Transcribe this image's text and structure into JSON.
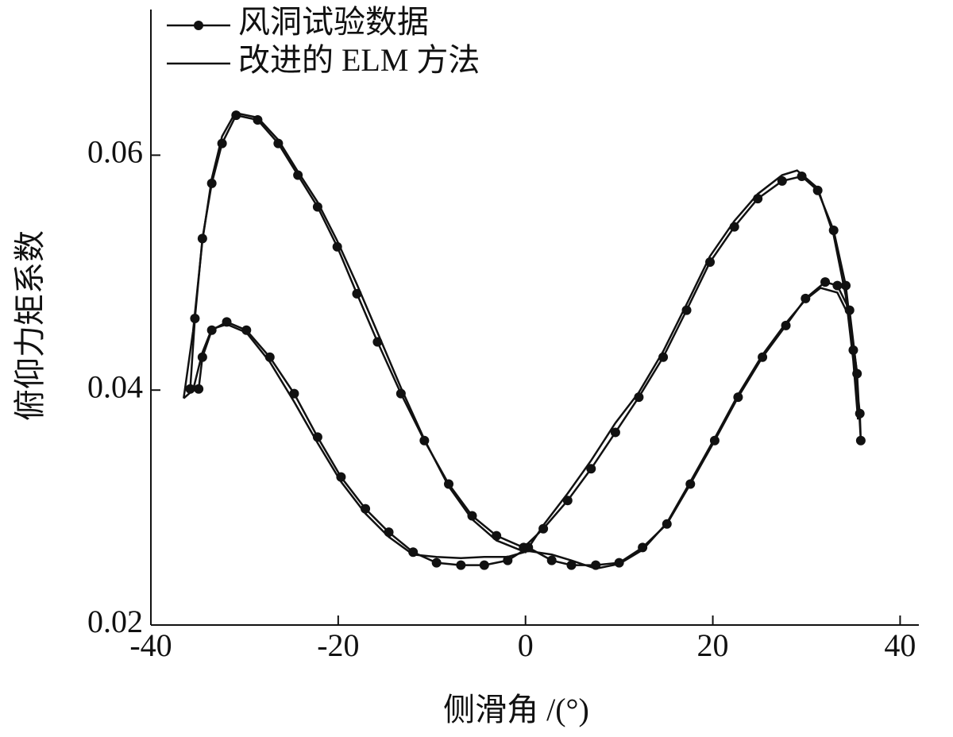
{
  "chart_data": {
    "type": "line",
    "x_label": "侧滑角 /(°)",
    "y_label": "俯仰力矩系数",
    "xlim": [
      -40,
      42
    ],
    "ylim": [
      0.02,
      0.0724
    ],
    "xticks": [
      -40,
      -20,
      0,
      20,
      40
    ],
    "yticks": [
      0.02,
      0.04,
      0.06
    ],
    "legend": "upper left",
    "series": [
      {
        "name": "风洞试验数据",
        "color": "#111111",
        "marker": true,
        "x": [
          -35.8,
          -35.3,
          -34.5,
          -33.5,
          -32.4,
          -30.9,
          -28.6,
          -26.4,
          -24.3,
          -22.2,
          -20.1,
          -18.0,
          -15.8,
          -13.3,
          -10.8,
          -8.2,
          -5.7,
          -3.1,
          -0.2,
          1.9,
          4.5,
          7.0,
          9.6,
          12.1,
          14.7,
          17.2,
          19.7,
          22.3,
          24.8,
          27.4,
          29.5,
          31.2,
          32.9,
          34.2,
          35.0,
          35.7,
          35.8,
          35.4,
          34.6,
          33.3,
          32.0,
          29.9,
          27.8,
          25.3,
          22.7,
          20.2,
          17.6,
          15.1,
          12.5,
          10.0,
          7.5,
          4.9,
          2.8,
          0.3,
          -1.9,
          -4.4,
          -6.9,
          -9.5,
          -12.0,
          -14.6,
          -17.1,
          -19.7,
          -22.2,
          -24.7,
          -27.3,
          -29.8,
          -31.9,
          -33.5,
          -34.5,
          -34.9
        ],
        "values": [
          0.0401,
          0.0461,
          0.0529,
          0.0576,
          0.061,
          0.0634,
          0.063,
          0.061,
          0.0583,
          0.0556,
          0.0522,
          0.0482,
          0.0441,
          0.0397,
          0.0357,
          0.032,
          0.0293,
          0.0276,
          0.0266,
          0.0282,
          0.0306,
          0.0333,
          0.0364,
          0.0394,
          0.0428,
          0.0468,
          0.0509,
          0.0539,
          0.0563,
          0.0578,
          0.0582,
          0.057,
          0.0536,
          0.0489,
          0.0434,
          0.038,
          0.0357,
          0.0414,
          0.0468,
          0.0489,
          0.0492,
          0.0478,
          0.0455,
          0.0428,
          0.0394,
          0.0357,
          0.032,
          0.0286,
          0.0266,
          0.0253,
          0.0251,
          0.0251,
          0.0255,
          0.0266,
          0.0255,
          0.0251,
          0.0251,
          0.0253,
          0.0262,
          0.0279,
          0.0299,
          0.0326,
          0.036,
          0.0397,
          0.0428,
          0.0451,
          0.0458,
          0.0451,
          0.0428,
          0.0401
        ]
      },
      {
        "name": "改进的 ELM 方法",
        "color": "#111111",
        "marker": false,
        "x": [
          -36.5,
          -35.5,
          -34.5,
          -33.5,
          -32.4,
          -31.0,
          -28.6,
          -26.4,
          -24.3,
          -22.2,
          -20.1,
          -18.0,
          -15.8,
          -13.3,
          -10.8,
          -8.2,
          -5.7,
          -3.1,
          0.0,
          2.0,
          4.5,
          7.0,
          9.6,
          12.1,
          14.7,
          17.2,
          19.7,
          22.3,
          24.8,
          27.4,
          29.0,
          31.2,
          32.9,
          34.2,
          35.0,
          35.5,
          35.4,
          34.6,
          33.3,
          31.5,
          29.9,
          27.8,
          25.3,
          22.7,
          20.2,
          17.6,
          15.1,
          12.5,
          10.0,
          7.5,
          4.9,
          2.8,
          0.3,
          -1.9,
          -4.4,
          -6.9,
          -9.5,
          -12.0,
          -14.6,
          -17.1,
          -19.7,
          -22.2,
          -24.7,
          -27.3,
          -29.8,
          -31.9,
          -33.5,
          -34.5,
          -35.5,
          -36.5
        ],
        "values": [
          0.0393,
          0.045,
          0.0527,
          0.058,
          0.0616,
          0.0636,
          0.0632,
          0.0613,
          0.0586,
          0.056,
          0.0527,
          0.049,
          0.0449,
          0.0402,
          0.0358,
          0.0318,
          0.029,
          0.0272,
          0.0262,
          0.0286,
          0.0312,
          0.034,
          0.0372,
          0.0398,
          0.0433,
          0.0473,
          0.0514,
          0.0544,
          0.0567,
          0.0583,
          0.0587,
          0.0572,
          0.0532,
          0.048,
          0.0425,
          0.0375,
          0.0415,
          0.0462,
          0.0483,
          0.0487,
          0.0477,
          0.0457,
          0.043,
          0.0396,
          0.0359,
          0.0322,
          0.0287,
          0.0264,
          0.0252,
          0.0248,
          0.0255,
          0.026,
          0.0263,
          0.0258,
          0.0258,
          0.0257,
          0.0258,
          0.026,
          0.0275,
          0.0295,
          0.0322,
          0.0355,
          0.039,
          0.0424,
          0.0449,
          0.0456,
          0.0452,
          0.0432,
          0.04,
          0.0393
        ]
      }
    ]
  }
}
